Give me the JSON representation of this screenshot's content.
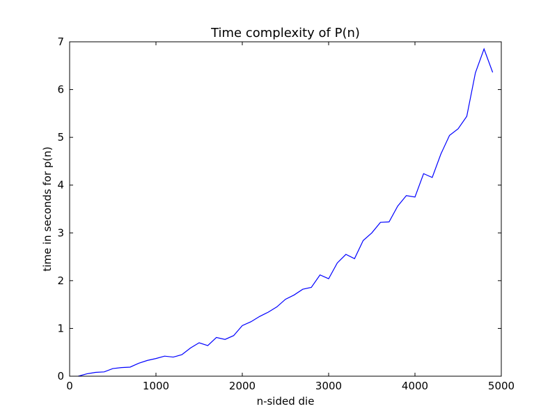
{
  "chart_data": {
    "type": "line",
    "title": "Time complexity of P(n)",
    "xlabel": "n-sided die",
    "ylabel": "time in seconds for p(n)",
    "xlim": [
      0,
      5000
    ],
    "ylim": [
      0,
      7
    ],
    "grid": false,
    "x_ticks": [
      "0",
      "1000",
      "2000",
      "3000",
      "4000",
      "5000"
    ],
    "y_ticks": [
      "0",
      "1",
      "2",
      "3",
      "4",
      "5",
      "6",
      "7"
    ],
    "series": [
      {
        "color": "#0000ff",
        "x": [
          100,
          200,
          300,
          400,
          500,
          600,
          700,
          800,
          900,
          1000,
          1100,
          1200,
          1300,
          1400,
          1500,
          1600,
          1700,
          1800,
          1900,
          2000,
          2100,
          2200,
          2300,
          2400,
          2500,
          2600,
          2700,
          2800,
          2900,
          3000,
          3100,
          3200,
          3300,
          3400,
          3500,
          3600,
          3700,
          3800,
          3900,
          4000,
          4100,
          4200,
          4300,
          4400,
          4500,
          4600,
          4700,
          4800,
          4900
        ],
        "y": [
          0.0,
          0.05,
          0.08,
          0.09,
          0.16,
          0.18,
          0.19,
          0.27,
          0.33,
          0.37,
          0.42,
          0.4,
          0.45,
          0.59,
          0.7,
          0.64,
          0.81,
          0.77,
          0.85,
          1.06,
          1.14,
          1.25,
          1.34,
          1.45,
          1.61,
          1.7,
          1.82,
          1.86,
          2.12,
          2.04,
          2.37,
          2.55,
          2.46,
          2.84,
          3.0,
          3.22,
          3.23,
          3.56,
          3.78,
          3.75,
          4.24,
          4.16,
          4.65,
          5.04,
          5.18,
          5.44,
          6.35,
          6.85,
          6.36
        ]
      }
    ]
  }
}
